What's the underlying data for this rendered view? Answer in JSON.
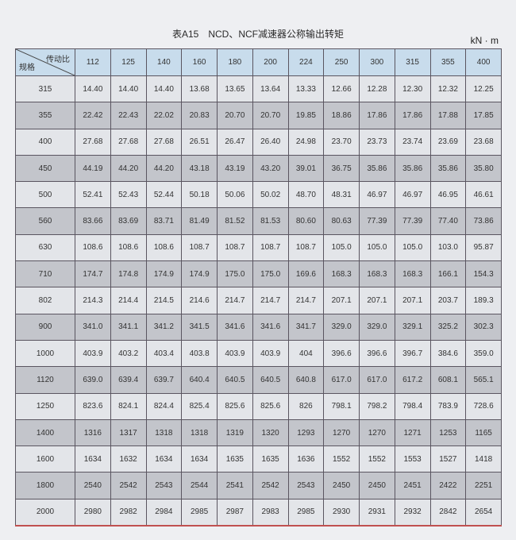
{
  "title": "表A15　NCD、NCF减速器公称输出转矩",
  "unit": "kN · m",
  "table": {
    "corner_top": "传动比",
    "corner_bottom": "规格",
    "ratios": [
      "112",
      "125",
      "140",
      "160",
      "180",
      "200",
      "224",
      "250",
      "300",
      "315",
      "355",
      "400"
    ],
    "rows": [
      {
        "size": "315",
        "values": [
          "14.40",
          "14.40",
          "14.40",
          "13.68",
          "13.65",
          "13.64",
          "13.33",
          "12.66",
          "12.28",
          "12.30",
          "12.32",
          "12.25"
        ]
      },
      {
        "size": "355",
        "values": [
          "22.42",
          "22.43",
          "22.02",
          "20.83",
          "20.70",
          "20.70",
          "19.85",
          "18.86",
          "17.86",
          "17.86",
          "17.88",
          "17.85"
        ]
      },
      {
        "size": "400",
        "values": [
          "27.68",
          "27.68",
          "27.68",
          "26.51",
          "26.47",
          "26.40",
          "24.98",
          "23.70",
          "23.73",
          "23.74",
          "23.69",
          "23.68"
        ]
      },
      {
        "size": "450",
        "values": [
          "44.19",
          "44.20",
          "44.20",
          "43.18",
          "43.19",
          "43.20",
          "39.01",
          "36.75",
          "35.86",
          "35.86",
          "35.86",
          "35.80"
        ]
      },
      {
        "size": "500",
        "values": [
          "52.41",
          "52.43",
          "52.44",
          "50.18",
          "50.06",
          "50.02",
          "48.70",
          "48.31",
          "46.97",
          "46.97",
          "46.95",
          "46.61"
        ]
      },
      {
        "size": "560",
        "values": [
          "83.66",
          "83.69",
          "83.71",
          "81.49",
          "81.52",
          "81.53",
          "80.60",
          "80.63",
          "77.39",
          "77.39",
          "77.40",
          "73.86"
        ]
      },
      {
        "size": "630",
        "values": [
          "108.6",
          "108.6",
          "108.6",
          "108.7",
          "108.7",
          "108.7",
          "108.7",
          "105.0",
          "105.0",
          "105.0",
          "103.0",
          "95.87"
        ]
      },
      {
        "size": "710",
        "values": [
          "174.7",
          "174.8",
          "174.9",
          "174.9",
          "175.0",
          "175.0",
          "169.6",
          "168.3",
          "168.3",
          "168.3",
          "166.1",
          "154.3"
        ]
      },
      {
        "size": "802",
        "values": [
          "214.3",
          "214.4",
          "214.5",
          "214.6",
          "214.7",
          "214.7",
          "214.7",
          "207.1",
          "207.1",
          "207.1",
          "203.7",
          "189.3"
        ]
      },
      {
        "size": "900",
        "values": [
          "341.0",
          "341.1",
          "341.2",
          "341.5",
          "341.6",
          "341.6",
          "341.7",
          "329.0",
          "329.0",
          "329.1",
          "325.2",
          "302.3"
        ]
      },
      {
        "size": "1000",
        "values": [
          "403.9",
          "403.2",
          "403.4",
          "403.8",
          "403.9",
          "403.9",
          "404",
          "396.6",
          "396.6",
          "396.7",
          "384.6",
          "359.0"
        ]
      },
      {
        "size": "1120",
        "values": [
          "639.0",
          "639.4",
          "639.7",
          "640.4",
          "640.5",
          "640.5",
          "640.8",
          "617.0",
          "617.0",
          "617.2",
          "608.1",
          "565.1"
        ]
      },
      {
        "size": "1250",
        "values": [
          "823.6",
          "824.1",
          "824.4",
          "825.4",
          "825.6",
          "825.6",
          "826",
          "798.1",
          "798.2",
          "798.4",
          "783.9",
          "728.6"
        ]
      },
      {
        "size": "1400",
        "values": [
          "1316",
          "1317",
          "1318",
          "1318",
          "1319",
          "1320",
          "1293",
          "1270",
          "1270",
          "1271",
          "1253",
          "1165"
        ]
      },
      {
        "size": "1600",
        "values": [
          "1634",
          "1632",
          "1634",
          "1634",
          "1635",
          "1635",
          "1636",
          "1552",
          "1552",
          "1553",
          "1527",
          "1418"
        ]
      },
      {
        "size": "1800",
        "values": [
          "2540",
          "2542",
          "2543",
          "2544",
          "2541",
          "2542",
          "2543",
          "2450",
          "2450",
          "2451",
          "2422",
          "2251"
        ]
      },
      {
        "size": "2000",
        "values": [
          "2980",
          "2982",
          "2984",
          "2985",
          "2987",
          "2983",
          "2985",
          "2930",
          "2931",
          "2932",
          "2842",
          "2654"
        ]
      }
    ]
  }
}
